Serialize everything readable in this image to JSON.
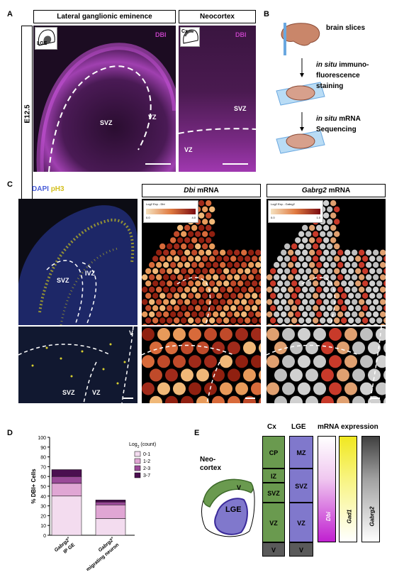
{
  "panel_a": {
    "letter": "A",
    "side_label": "E12.5",
    "lge_header": "Lateral ganglionic eminence",
    "cx_header": "Neocortex",
    "lge_inset": "LGE",
    "cx_inset": "Cx",
    "stain": "DBI",
    "lge_regions": [
      "SVZ",
      "VZ"
    ],
    "cx_regions": [
      "SVZ",
      "VZ"
    ]
  },
  "panel_b": {
    "letter": "B",
    "step1": "brain slices",
    "step2_italic": "in situ",
    "step2_rest": "immuno-",
    "step2_l2": "fluorescence",
    "step2_l3": "staining",
    "step3_italic": "in situ",
    "step3_rest": "mRNA",
    "step3_l2": "Sequencing"
  },
  "panel_c": {
    "letter": "C",
    "dapi": "DAPI",
    "ph3": "pH3",
    "dbi_gene": "Dbi",
    "gabrg2_gene": "Gabrg2",
    "mrna": "mRNA",
    "dbi_legend_title": "Log2 Exp - Dbi",
    "gabrg2_legend_title": "Log2 Exp - Gabrg2",
    "dbi_legend_min": "0.0",
    "dbi_legend_max": "4.0",
    "gabrg2_legend_min": "0.0",
    "gabrg2_legend_max": "1.0",
    "top_regions": [
      "SVZ",
      "IVZ"
    ],
    "bottom_regions": [
      "SVZ",
      "VZ",
      "V"
    ]
  },
  "panel_d": {
    "letter": "D",
    "chart_data": {
      "type": "bar",
      "stacked": true,
      "ylabel": "% DBI+ Cells",
      "ylim": [
        0,
        100
      ],
      "yticks": [
        0,
        10,
        20,
        30,
        40,
        50,
        60,
        70,
        80,
        90,
        100
      ],
      "categories": [
        "Gabrg2+ IP GE",
        "Gabrg2+ migrating neuron"
      ],
      "category_lines": [
        [
          "Gabrg2",
          "+",
          "IP GE"
        ],
        [
          "Gabrg2",
          "+",
          "migrating neuron"
        ]
      ],
      "legend_title_pre": "Log",
      "legend_title_sub": "2",
      "legend_title_post": " (count)",
      "series": [
        {
          "name": "0-1",
          "color": "#f3dcef",
          "values": [
            40,
            17
          ]
        },
        {
          "name": "1-2",
          "color": "#e0a6d4",
          "values": [
            13,
            14
          ]
        },
        {
          "name": "2-3",
          "color": "#9a4a98",
          "values": [
            7,
            3
          ]
        },
        {
          "name": "3-7",
          "color": "#4b0f50",
          "values": [
            7,
            2
          ]
        }
      ]
    }
  },
  "panel_e": {
    "letter": "E",
    "neocortex_l1": "Neo-",
    "neocortex_l2": "cortex",
    "brain_v": "V",
    "brain_lge": "LGE",
    "cx_header": "Cx",
    "lge_header": "LGE",
    "expr_header": "mRNA expression",
    "cx_layers": [
      "CP",
      "IZ",
      "SVZ",
      "VZ",
      "V"
    ],
    "lge_layers": [
      "MZ",
      "SVZ",
      "VZ",
      "V"
    ],
    "genes": [
      "Dbi",
      "Gad1",
      "Gabrg2"
    ],
    "colors": {
      "cx": "#6a9a4f",
      "lge": "#8078cc",
      "ventricle": "#5a5a5a"
    }
  }
}
